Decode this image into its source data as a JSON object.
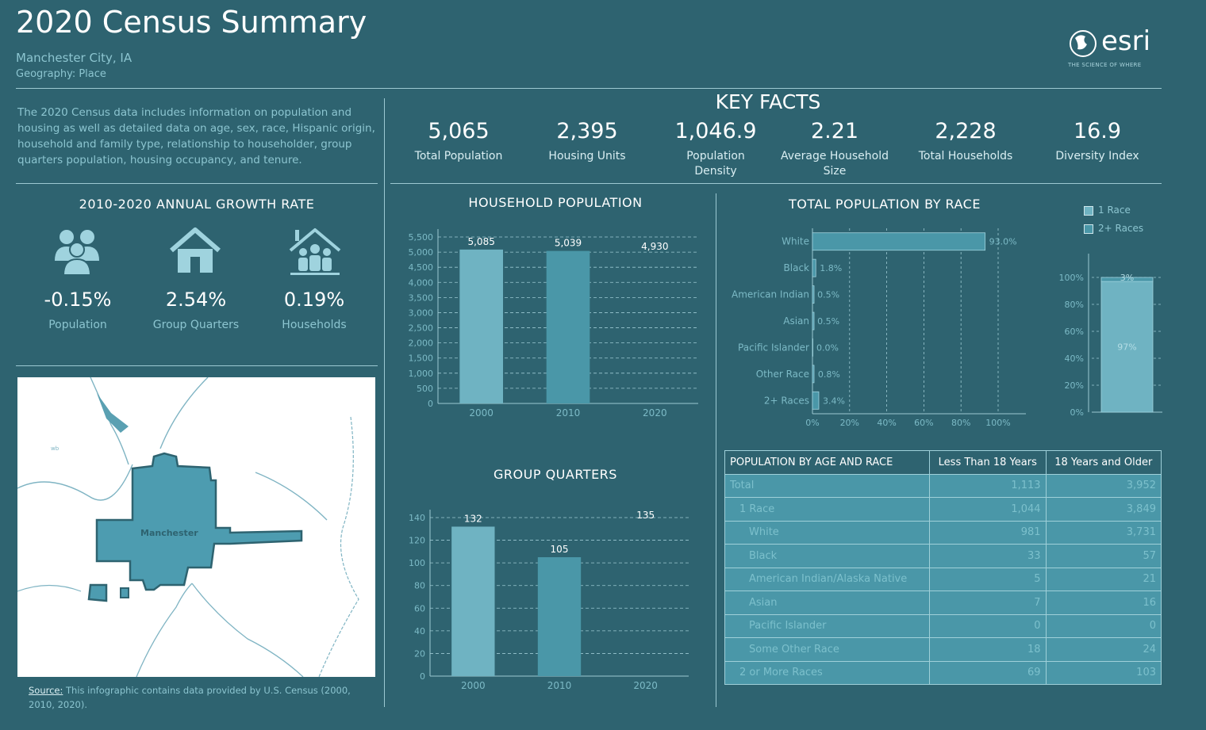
{
  "header": {
    "title": "2020 Census Summary",
    "location": "Manchester City, IA",
    "geography": "Geography: Place",
    "logo_text": "esri",
    "logo_tagline": "THE SCIENCE OF WHERE"
  },
  "description": "The 2020 Census data includes information on population and housing as well as detailed data on age, sex, race, Hispanic origin, household and family type, relationship to householder, group quarters population, housing occupancy, and tenure.",
  "key_facts": {
    "title": "KEY FACTS",
    "items": [
      {
        "value": "5,065",
        "label": "Total Population"
      },
      {
        "value": "2,395",
        "label": "Housing Units"
      },
      {
        "value": "1,046.9",
        "label": "Population Density"
      },
      {
        "value": "2.21",
        "label": "Average Household Size"
      },
      {
        "value": "2,228",
        "label": "Total Households"
      },
      {
        "value": "16.9",
        "label": "Diversity Index"
      }
    ]
  },
  "growth": {
    "title": "2010-2020 ANNUAL GROWTH RATE",
    "items": [
      {
        "value": "-0.15%",
        "label": "Population",
        "icon": "people-icon"
      },
      {
        "value": "2.54%",
        "label": "Group Quarters",
        "icon": "house-icon"
      },
      {
        "value": "0.19%",
        "label": "Households",
        "icon": "family-house-icon"
      }
    ]
  },
  "map": {
    "city_label": "Manchester"
  },
  "source": {
    "label": "Source:",
    "text": " This infographic contains data provided by U.S. Census (2000, 2010, 2020)."
  },
  "colors": {
    "background": "#2e6370",
    "bar_light": "#6fb3c2",
    "bar_mid": "#4a97a8",
    "line": "#9cc9d2"
  },
  "chart_data": [
    {
      "type": "bar",
      "title": "HOUSEHOLD POPULATION",
      "categories": [
        "2000",
        "2010",
        "2020"
      ],
      "values": [
        5085,
        5039,
        4930
      ],
      "value_labels": [
        "5,085",
        "5,039",
        "4,930"
      ],
      "yticks": [
        "0",
        "500",
        "1,000",
        "1,500",
        "2,000",
        "2,500",
        "3,000",
        "3,500",
        "4,000",
        "4,500",
        "5,000",
        "5,500"
      ],
      "ylim": [
        0,
        5500
      ]
    },
    {
      "type": "bar",
      "title": "GROUP QUARTERS",
      "categories": [
        "2000",
        "2010",
        "2020"
      ],
      "values": [
        132,
        105,
        135
      ],
      "value_labels": [
        "132",
        "105",
        "135"
      ],
      "yticks": [
        "0",
        "20",
        "40",
        "60",
        "80",
        "100",
        "120",
        "140"
      ],
      "ylim": [
        0,
        140
      ]
    },
    {
      "type": "bar",
      "orientation": "horizontal",
      "title": "TOTAL POPULATION BY RACE",
      "categories": [
        "White",
        "Black",
        "American Indian",
        "Asian",
        "Pacific Islander",
        "Other Race",
        "2+ Races"
      ],
      "values": [
        93.0,
        1.8,
        0.5,
        0.5,
        0.0,
        0.8,
        3.4
      ],
      "value_labels": [
        "93.0%",
        "1.8%",
        "0.5%",
        "0.5%",
        "0.0%",
        "0.8%",
        "3.4%"
      ],
      "xticks": [
        "0%",
        "20%",
        "40%",
        "60%",
        "80%",
        "100%"
      ],
      "xlim": [
        0,
        100
      ]
    },
    {
      "type": "bar",
      "stacked": true,
      "title": "",
      "legend": [
        "1 Race",
        "2+ Races"
      ],
      "series": [
        {
          "name": "1 Race",
          "values": [
            97
          ]
        },
        {
          "name": "2+ Races",
          "values": [
            3
          ]
        }
      ],
      "value_labels": [
        "97%",
        "3%"
      ],
      "yticks": [
        "0%",
        "20%",
        "40%",
        "60%",
        "80%",
        "100%"
      ],
      "ylim": [
        0,
        100
      ]
    },
    {
      "type": "table",
      "title": "POPULATION BY AGE AND RACE",
      "columns": [
        "POPULATION BY AGE AND RACE",
        "Less Than 18 Years",
        "18 Years and Older"
      ],
      "rows": [
        {
          "label": "Total",
          "indent": 0,
          "under18": "1,113",
          "over18": "3,952"
        },
        {
          "label": "1 Race",
          "indent": 1,
          "under18": "1,044",
          "over18": "3,849"
        },
        {
          "label": "White",
          "indent": 2,
          "under18": "981",
          "over18": "3,731"
        },
        {
          "label": "Black",
          "indent": 2,
          "under18": "33",
          "over18": "57"
        },
        {
          "label": "American Indian/Alaska Native",
          "indent": 2,
          "under18": "5",
          "over18": "21"
        },
        {
          "label": "Asian",
          "indent": 2,
          "under18": "7",
          "over18": "16"
        },
        {
          "label": "Pacific Islander",
          "indent": 2,
          "under18": "0",
          "over18": "0"
        },
        {
          "label": "Some Other Race",
          "indent": 2,
          "under18": "18",
          "over18": "24"
        },
        {
          "label": "2 or More Races",
          "indent": 1,
          "under18": "69",
          "over18": "103"
        }
      ]
    }
  ]
}
